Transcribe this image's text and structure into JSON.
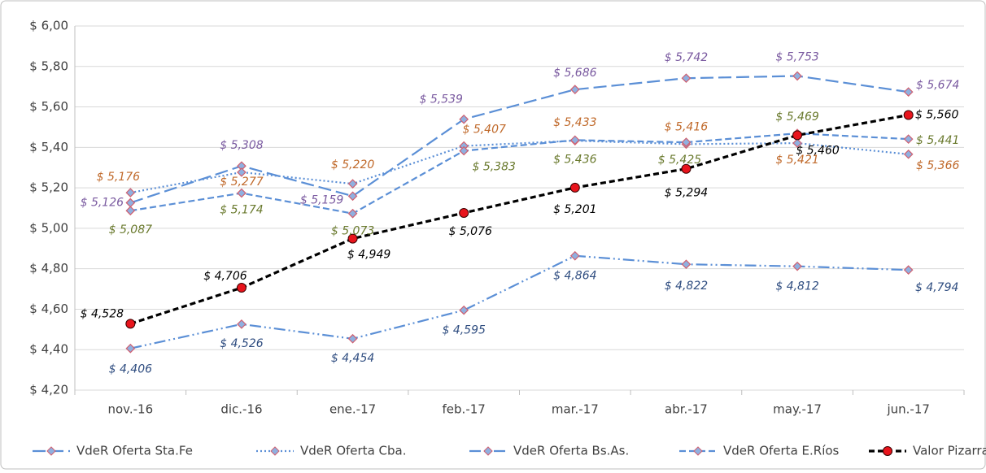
{
  "chart_data": {
    "type": "line",
    "categories": [
      "nov.-16",
      "dic.-16",
      "ene.-17",
      "feb.-17",
      "mar.-17",
      "abr.-17",
      "may.-17",
      "jun.-17"
    ],
    "ylim": [
      4.2,
      6.0
    ],
    "yticks": [
      {
        "value": 4.2,
        "label": "$ 4,20"
      },
      {
        "value": 4.4,
        "label": "$ 4,40"
      },
      {
        "value": 4.6,
        "label": "$ 4,60"
      },
      {
        "value": 4.8,
        "label": "$ 4,80"
      },
      {
        "value": 5.0,
        "label": "$ 5,00"
      },
      {
        "value": 5.2,
        "label": "$ 5,20"
      },
      {
        "value": 5.4,
        "label": "$ 5,40"
      },
      {
        "value": 5.6,
        "label": "$ 5,60"
      },
      {
        "value": 5.8,
        "label": "$ 5,80"
      },
      {
        "value": 6.0,
        "label": "$ 6,00"
      }
    ],
    "grid": true,
    "legend": "bottom",
    "series": [
      {
        "name": "VdeR Oferta Sta.Fe",
        "color": "#5b8fd6",
        "label_color": "#7a5aa0",
        "line_style": "long-dash",
        "marker": "diamond",
        "values": [
          5.126,
          5.308,
          5.159,
          5.539,
          5.686,
          5.742,
          5.753,
          5.674
        ],
        "value_labels": [
          "$ 5,126",
          "$ 5,308",
          "$ 5,159",
          "$ 5,539",
          "$ 5,686",
          "$ 5,742",
          "$ 5,753",
          "$ 5,674"
        ]
      },
      {
        "name": "VdeR Oferta Cba.",
        "color": "#5b8fd6",
        "label_color": "#c0692a",
        "line_style": "dotted",
        "marker": "diamond",
        "values": [
          5.176,
          5.277,
          5.22,
          5.407,
          5.433,
          5.416,
          5.421,
          5.366
        ],
        "value_labels": [
          "$ 5,176",
          "$ 5,277",
          "$ 5,220",
          "$ 5,407",
          "$ 5,433",
          "$ 5,416",
          "$ 5,421",
          "$ 5,366"
        ]
      },
      {
        "name": "VdeR Oferta Bs.As.",
        "color": "#5b8fd6",
        "label_color": "#2f4d80",
        "line_style": "dash-dot-dot",
        "marker": "diamond",
        "values": [
          4.406,
          4.526,
          4.454,
          4.595,
          4.864,
          4.822,
          4.812,
          4.794
        ],
        "value_labels": [
          "$ 4,406",
          "$ 4,526",
          "$ 4,454",
          "$ 4,595",
          "$ 4,864",
          "$ 4,822",
          "$ 4,812",
          "$ 4,794"
        ]
      },
      {
        "name": "VdeR Oferta E.Ríos",
        "color": "#5b8fd6",
        "label_color": "#6a7a2e",
        "line_style": "dash",
        "marker": "diamond",
        "values": [
          5.087,
          5.174,
          5.073,
          5.383,
          5.436,
          5.425,
          5.469,
          5.441
        ],
        "value_labels": [
          "$ 5,087",
          "$ 5,174",
          "$ 5,073",
          "$ 5,383",
          "$ 5,436",
          "$ 5,425",
          "$ 5,469",
          "$ 5,441"
        ]
      },
      {
        "name": "Valor Pizarra",
        "color": "#000000",
        "label_color": "#000000",
        "line_style": "bold-dash",
        "marker": "circle",
        "values": [
          4.528,
          4.706,
          4.949,
          5.076,
          5.201,
          5.294,
          5.46,
          5.56
        ],
        "value_labels": [
          "$ 4,528",
          "$ 4,706",
          "$ 4,949",
          "$ 5,076",
          "$ 5,201",
          "$ 5,294",
          "$ 5,460",
          "$ 5,560"
        ]
      }
    ]
  }
}
